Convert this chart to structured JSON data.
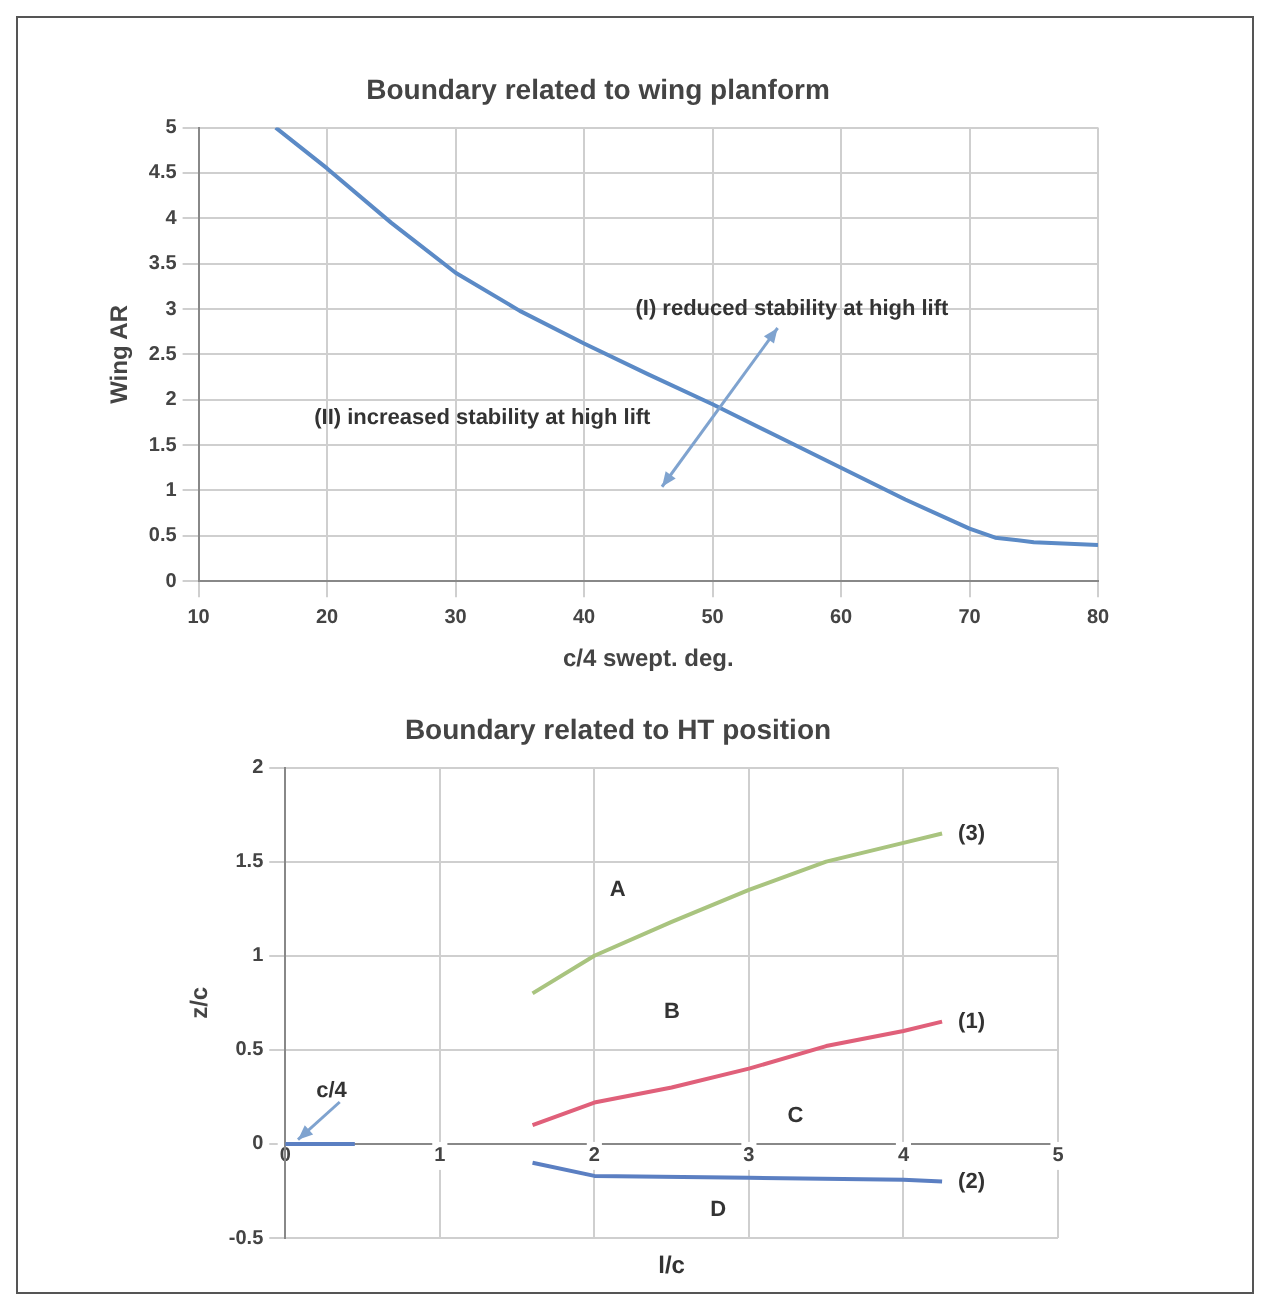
{
  "chart_data": [
    {
      "type": "line",
      "title": "Boundary related to wing planform",
      "xlabel": "c/4 swept. deg.",
      "ylabel": "Wing AR",
      "xlim": [
        10,
        80
      ],
      "xticks": [
        10,
        20,
        30,
        40,
        50,
        60,
        70,
        80
      ],
      "ylim": [
        0,
        5
      ],
      "yticks": [
        0,
        0.5,
        1,
        1.5,
        2,
        2.5,
        3,
        3.5,
        4,
        4.5,
        5
      ],
      "grid": true,
      "legend": false,
      "marker": "none",
      "series": [
        {
          "color": "#5b8ac6",
          "x": [
            16,
            20,
            25,
            30,
            35,
            40,
            45,
            50,
            55,
            60,
            65,
            70,
            72,
            75,
            80
          ],
          "values": [
            5,
            4.55,
            3.95,
            3.4,
            2.98,
            2.62,
            2.28,
            1.95,
            1.6,
            1.25,
            0.9,
            0.58,
            0.48,
            0.43,
            0.4
          ]
        }
      ],
      "annotations": [
        "(I) reduced stability at high lift",
        "(II) increased stability at high lift"
      ]
    },
    {
      "type": "line",
      "title": "Boundary related to HT position",
      "xlabel": "l/c",
      "ylabel": "z/c",
      "xlim": [
        0,
        5
      ],
      "xticks": [
        0,
        1,
        2,
        3,
        4,
        5
      ],
      "ylim": [
        -0.5,
        2
      ],
      "yticks": [
        -0.5,
        0,
        0.5,
        1,
        1.5,
        2
      ],
      "grid": true,
      "legend": false,
      "marker": "none",
      "series": [
        {
          "name": "(3)",
          "color": "#a9c47f",
          "x": [
            1.6,
            2,
            2.5,
            3,
            3.5,
            4,
            4.25
          ],
          "values": [
            0.8,
            1,
            1.18,
            1.35,
            1.5,
            1.6,
            1.65
          ]
        },
        {
          "name": "(1)",
          "color": "#e0607a",
          "x": [
            1.6,
            2,
            2.5,
            3,
            3.5,
            4,
            4.25
          ],
          "values": [
            0.1,
            0.22,
            0.3,
            0.4,
            0.52,
            0.6,
            0.65
          ]
        },
        {
          "name": "(2)",
          "color": "#5b7fc2",
          "x": [
            1.6,
            2,
            3,
            4,
            4.25
          ],
          "values": [
            -0.1,
            -0.17,
            -0.18,
            -0.19,
            -0.2
          ]
        },
        {
          "color": "#5b7fc2",
          "x": [
            0,
            0.45
          ],
          "values": [
            0,
            0
          ]
        }
      ],
      "annotations": [
        "A",
        "B",
        "C",
        "D",
        "c/4"
      ]
    }
  ]
}
